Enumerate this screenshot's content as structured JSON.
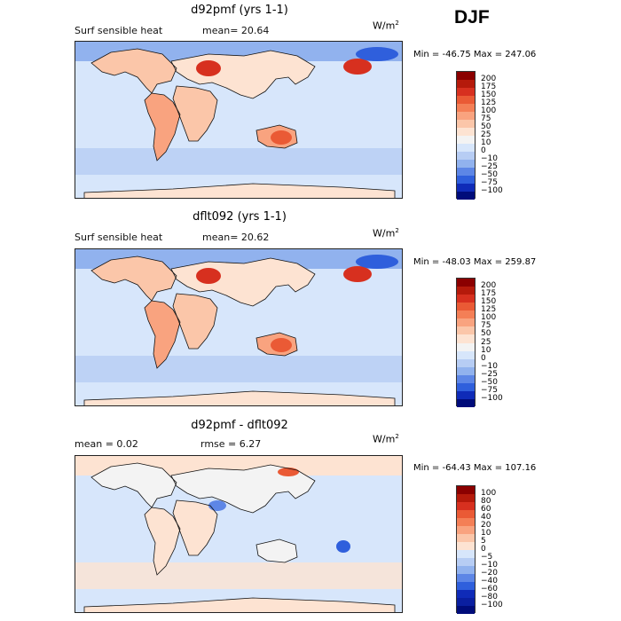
{
  "season": "DJF",
  "panels": [
    {
      "title": "d92pmf (yrs 1-1)",
      "left_label": "Surf sensible heat",
      "mid_label": "mean=  20.64",
      "unit": "W/m",
      "unit_exp": "2",
      "minmax": "Min = -46.75 Max = 247.06",
      "levels": [
        "200",
        "175",
        "150",
        "125",
        "100",
        "75",
        "50",
        "25",
        "10",
        "0",
        "−10",
        "−25",
        "−50",
        "−75",
        "−100"
      ],
      "colors": [
        "#8b0000",
        "#b51a0b",
        "#d7301f",
        "#ea5a35",
        "#f47f56",
        "#f9a37f",
        "#fbc6a9",
        "#fde3d2",
        "#f3f3f3",
        "#d7e6fb",
        "#b7cdf4",
        "#91b2ee",
        "#5d86e6",
        "#2f5fdc",
        "#0f2bb8",
        "#000c7a"
      ]
    },
    {
      "title": "dflt092 (yrs 1-1)",
      "left_label": "Surf sensible heat",
      "mid_label": "mean=  20.62",
      "unit": "W/m",
      "unit_exp": "2",
      "minmax": "Min = -48.03 Max = 259.87",
      "levels": [
        "200",
        "175",
        "150",
        "125",
        "100",
        "75",
        "50",
        "25",
        "10",
        "0",
        "−10",
        "−25",
        "−50",
        "−75",
        "−100"
      ],
      "colors": [
        "#8b0000",
        "#b51a0b",
        "#d7301f",
        "#ea5a35",
        "#f47f56",
        "#f9a37f",
        "#fbc6a9",
        "#fde3d2",
        "#f3f3f3",
        "#d7e6fb",
        "#b7cdf4",
        "#91b2ee",
        "#5d86e6",
        "#2f5fdc",
        "#0f2bb8",
        "#000c7a"
      ]
    },
    {
      "title": "d92pmf - dflt092",
      "left_label": "mean =    0.02",
      "mid_label": "rmse =    6.27",
      "unit": "W/m",
      "unit_exp": "2",
      "minmax": "Min = -64.43 Max = 107.16",
      "levels": [
        "100",
        "80",
        "60",
        "40",
        "20",
        "10",
        "5",
        "0",
        "−5",
        "−10",
        "−20",
        "−40",
        "−60",
        "−80",
        "−100"
      ],
      "colors": [
        "#8b0000",
        "#b51a0b",
        "#d7301f",
        "#ea5a35",
        "#f47f56",
        "#f9a37f",
        "#fbc6a9",
        "#fde3d2",
        "#d7e6fb",
        "#b7cdf4",
        "#91b2ee",
        "#5d86e6",
        "#2f5fdc",
        "#0f2bb8",
        "#0a1fa0",
        "#000c7a"
      ]
    }
  ]
}
